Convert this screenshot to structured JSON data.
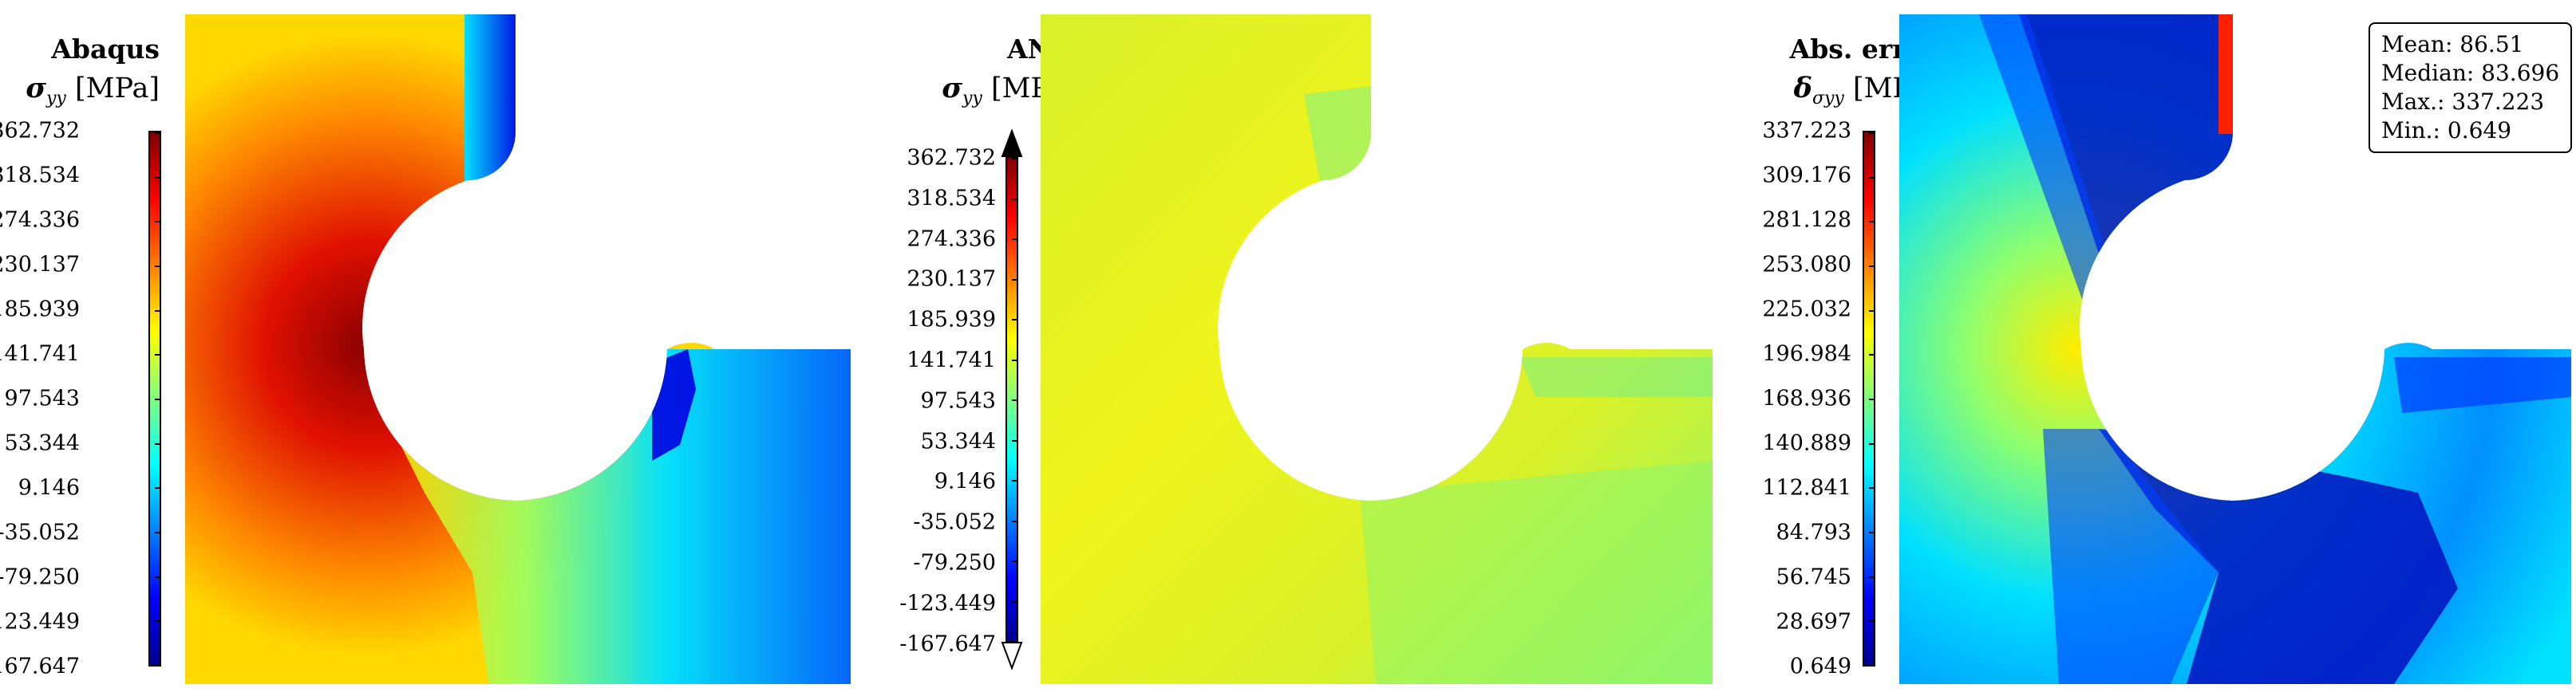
{
  "colormap": [
    "#00008f",
    "#0000ff",
    "#007fff",
    "#00ffff",
    "#7fff7f",
    "#ffff00",
    "#ff7f00",
    "#ff0000",
    "#7f0000"
  ],
  "panels": [
    {
      "title": "Abaqus",
      "symbol": "σ",
      "symbol_sub": "yy",
      "unit": "[MPa]",
      "ticks": [
        "362.732",
        "318.534",
        "274.336",
        "230.137",
        "185.939",
        "141.741",
        "97.543",
        "53.344",
        "9.146",
        "-35.052",
        "-79.250",
        "-123.449",
        "-167.647"
      ],
      "field_colors": {
        "hot": "#8a0000",
        "red": "#e01000",
        "orange": "#ff8a00",
        "yellow": "#ffd800",
        "green": "#9cff60",
        "cyan": "#00e0ff",
        "blue": "#0060ff",
        "deep": "#0000e0"
      }
    },
    {
      "title": "ANN",
      "symbol": "σ",
      "symbol_sub": "yy",
      "unit": "[MPa]",
      "ticks": [
        "362.732",
        "318.534",
        "274.336",
        "230.137",
        "185.939",
        "141.741",
        "97.543",
        "53.344",
        "9.146",
        "-35.052",
        "-79.250",
        "-123.449",
        "-167.647"
      ],
      "field_colors": {
        "main": "#d8f22a",
        "yellow": "#f0f41c",
        "green": "#8ff56a",
        "cyan": "#40f0c0"
      }
    },
    {
      "title": "Abs. error",
      "symbol": "δ",
      "symbol_sub": "σyy",
      "unit": "[MPa]",
      "ticks": [
        "337.223",
        "309.176",
        "281.128",
        "253.080",
        "225.032",
        "196.984",
        "168.936",
        "140.889",
        "112.841",
        "84.793",
        "56.745",
        "28.697",
        "0.649"
      ],
      "field_colors": {
        "dark": "#0010c0",
        "blue": "#0040ff",
        "light": "#0090ff",
        "cyan": "#00e0ff",
        "green": "#8cff70",
        "yellow": "#ffee00",
        "red": "#ff2000"
      }
    }
  ],
  "stats_box": {
    "mean": "Mean: 86.51",
    "median": "Median: 83.696",
    "max": "Max.: 337.223",
    "min": "Min.: 0.649"
  }
}
